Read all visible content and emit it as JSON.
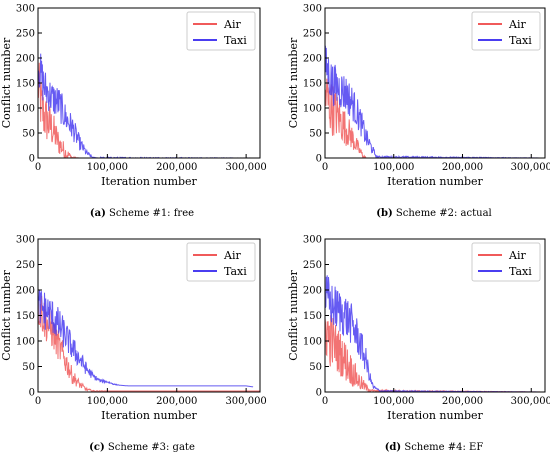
{
  "colors": {
    "air": "#f05a5a",
    "taxi": "#4a3df0"
  },
  "chart_data": [
    {
      "type": "line",
      "caption_label": "(a)",
      "caption_text": " Scheme #1: free",
      "xlabel": "Iteration number",
      "ylabel": "Conflict number",
      "xlim": [
        0,
        320000
      ],
      "ylim": [
        0,
        300
      ],
      "xticks": [
        0,
        100000,
        200000,
        300000
      ],
      "xtick_labels": [
        "0",
        "100,000",
        "200,000",
        "300,000"
      ],
      "yticks": [
        0,
        50,
        100,
        150,
        200,
        250,
        300
      ],
      "ytick_labels": [
        "0",
        "50",
        "100",
        "150",
        "200",
        "250",
        "300"
      ],
      "legend": "top-right",
      "grid": false,
      "series": [
        {
          "name": "Air",
          "color_key": "air",
          "x": [
            0,
            5000,
            10000,
            20000,
            30000,
            40000,
            45000,
            50000,
            60000,
            70000,
            320000
          ],
          "y": [
            150,
            100,
            80,
            60,
            30,
            10,
            5,
            0,
            0,
            0,
            0
          ],
          "noise": [
            60,
            60,
            50,
            40,
            25,
            15,
            8,
            3,
            0,
            0,
            0
          ]
        },
        {
          "name": "Taxi",
          "color_key": "taxi",
          "x": [
            0,
            5000,
            10000,
            20000,
            30000,
            40000,
            50000,
            60000,
            70000,
            80000,
            320000
          ],
          "y": [
            190,
            160,
            140,
            120,
            110,
            80,
            60,
            30,
            10,
            0,
            0
          ],
          "noise": [
            40,
            45,
            40,
            35,
            35,
            30,
            25,
            15,
            6,
            2,
            0
          ]
        }
      ]
    },
    {
      "type": "line",
      "caption_label": "(b)",
      "caption_text": " Scheme #2: actual",
      "xlabel": "Iteration number",
      "ylabel": "Conflict number",
      "xlim": [
        0,
        320000
      ],
      "ylim": [
        0,
        300
      ],
      "xticks": [
        0,
        100000,
        200000,
        300000
      ],
      "xtick_labels": [
        "0",
        "100,000",
        "200,000",
        "300,000"
      ],
      "yticks": [
        0,
        50,
        100,
        150,
        200,
        250,
        300
      ],
      "ytick_labels": [
        "0",
        "50",
        "100",
        "150",
        "200",
        "250",
        "300"
      ],
      "legend": "top-right",
      "grid": false,
      "series": [
        {
          "name": "Air",
          "color_key": "air",
          "x": [
            0,
            5000,
            10000,
            20000,
            30000,
            40000,
            50000,
            55000,
            60000,
            320000
          ],
          "y": [
            130,
            110,
            100,
            80,
            60,
            40,
            15,
            5,
            0,
            0
          ],
          "noise": [
            60,
            60,
            55,
            45,
            35,
            25,
            12,
            6,
            0,
            0
          ]
        },
        {
          "name": "Taxi",
          "color_key": "taxi",
          "x": [
            0,
            5000,
            10000,
            20000,
            30000,
            40000,
            50000,
            60000,
            70000,
            75000,
            320000
          ],
          "y": [
            190,
            170,
            150,
            140,
            130,
            110,
            80,
            40,
            15,
            2,
            0
          ],
          "noise": [
            40,
            45,
            45,
            40,
            40,
            35,
            30,
            20,
            8,
            2,
            0
          ]
        }
      ]
    },
    {
      "type": "line",
      "caption_label": "(c)",
      "caption_text": " Scheme #3: gate",
      "xlabel": "Iteration number",
      "ylabel": "Conflict number",
      "xlim": [
        0,
        320000
      ],
      "ylim": [
        0,
        300
      ],
      "xticks": [
        0,
        100000,
        200000,
        300000
      ],
      "xtick_labels": [
        "0",
        "100,000",
        "200,000",
        "300,000"
      ],
      "yticks": [
        0,
        50,
        100,
        150,
        200,
        250,
        300
      ],
      "ytick_labels": [
        "0",
        "50",
        "100",
        "150",
        "200",
        "250",
        "300"
      ],
      "legend": "top-right",
      "grid": false,
      "series": [
        {
          "name": "Air",
          "color_key": "air",
          "x": [
            0,
            5000,
            10000,
            20000,
            30000,
            40000,
            50000,
            60000,
            70000,
            80000,
            100000,
            320000
          ],
          "y": [
            170,
            160,
            140,
            120,
            90,
            60,
            30,
            15,
            5,
            2,
            2,
            2
          ],
          "noise": [
            45,
            45,
            40,
            35,
            30,
            25,
            15,
            8,
            3,
            1,
            0,
            0
          ]
        },
        {
          "name": "Taxi",
          "color_key": "taxi",
          "x": [
            0,
            10000,
            20000,
            30000,
            40000,
            50000,
            60000,
            70000,
            80000,
            90000,
            100000,
            110000,
            120000,
            130000,
            300000,
            310000
          ],
          "y": [
            170,
            160,
            150,
            130,
            110,
            85,
            65,
            45,
            30,
            22,
            20,
            15,
            13,
            12,
            12,
            10
          ],
          "noise": [
            40,
            40,
            35,
            35,
            30,
            25,
            20,
            12,
            6,
            3,
            2,
            1,
            0,
            0,
            0,
            0
          ]
        }
      ]
    },
    {
      "type": "line",
      "caption_label": "(d)",
      "caption_text": " Scheme #4: EF",
      "xlabel": "Iteration number",
      "ylabel": "Conflict number",
      "xlim": [
        0,
        320000
      ],
      "ylim": [
        0,
        300
      ],
      "xticks": [
        0,
        100000,
        200000,
        300000
      ],
      "xtick_labels": [
        "0",
        "100,000",
        "200,000",
        "300,000"
      ],
      "yticks": [
        0,
        50,
        100,
        150,
        200,
        250,
        300
      ],
      "ytick_labels": [
        "0",
        "50",
        "100",
        "150",
        "200",
        "250",
        "300"
      ],
      "legend": "top-right",
      "grid": false,
      "series": [
        {
          "name": "Air",
          "color_key": "air",
          "x": [
            0,
            5000,
            10000,
            20000,
            30000,
            40000,
            50000,
            60000,
            70000,
            320000
          ],
          "y": [
            130,
            110,
            100,
            80,
            60,
            40,
            20,
            8,
            2,
            0
          ],
          "noise": [
            60,
            60,
            55,
            45,
            40,
            30,
            18,
            8,
            2,
            0
          ]
        },
        {
          "name": "Taxi",
          "color_key": "taxi",
          "x": [
            0,
            5000,
            10000,
            20000,
            30000,
            40000,
            50000,
            60000,
            65000,
            70000,
            80000,
            320000
          ],
          "y": [
            190,
            180,
            170,
            160,
            150,
            130,
            100,
            60,
            30,
            10,
            2,
            0
          ],
          "noise": [
            45,
            50,
            45,
            45,
            45,
            40,
            35,
            25,
            12,
            5,
            1,
            0
          ]
        }
      ]
    }
  ]
}
